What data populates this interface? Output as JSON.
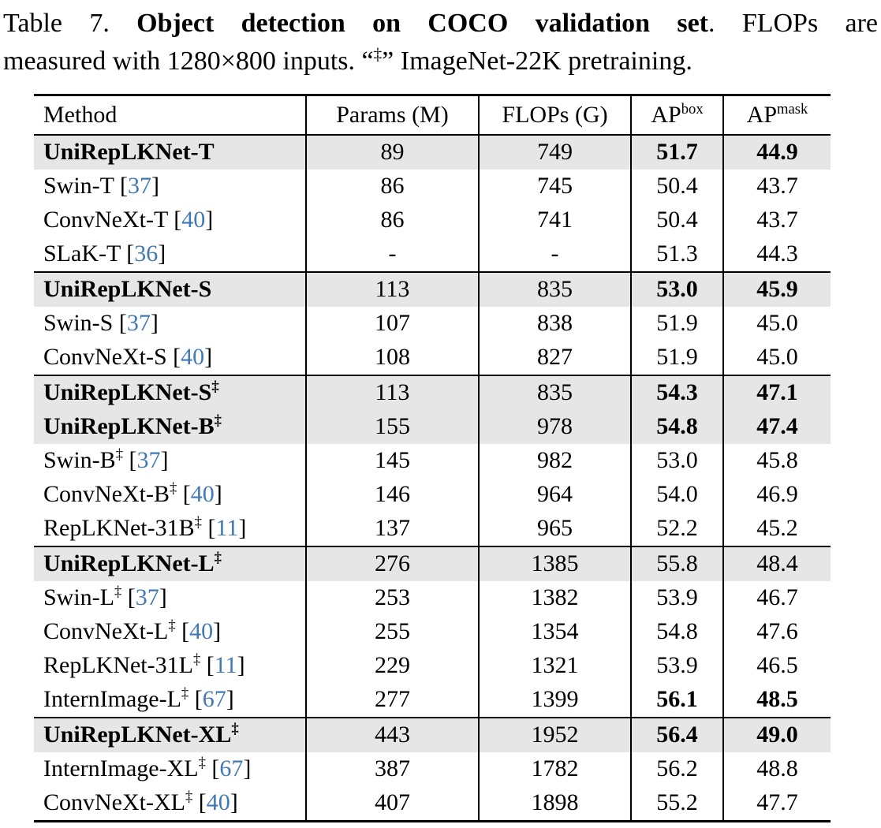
{
  "caption": {
    "label": "Table 7.",
    "title_bold": "Object detection on COCO validation set",
    "after_title": ". FLOPs are",
    "line2_pre": "measured with 1280×800 inputs. “",
    "dagger": "‡",
    "line2_post": "” ImageNet-22K pretraining."
  },
  "colors": {
    "highlight_bg": "#e6e6e6",
    "citation_blue": "#4179b5",
    "rule_black": "#000000"
  },
  "table": {
    "headers": {
      "method": "Method",
      "params": "Params (M)",
      "flops": "FLOPs (G)",
      "ap": "AP",
      "box_sup": "box",
      "mask_sup": "mask"
    },
    "rows": [
      {
        "method": "UniRepLKNet-T",
        "sup": "",
        "cite": "",
        "params": "89",
        "flops": "749",
        "ap_box": "51.7",
        "ap_mask": "44.9",
        "highlight": true,
        "bold_method": true,
        "bold_ap": true,
        "rule_above": false
      },
      {
        "method": "Swin-T",
        "sup": "",
        "cite": "37",
        "params": "86",
        "flops": "745",
        "ap_box": "50.4",
        "ap_mask": "43.7",
        "highlight": false,
        "bold_method": false,
        "bold_ap": false,
        "rule_above": false
      },
      {
        "method": "ConvNeXt-T",
        "sup": "",
        "cite": "40",
        "params": "86",
        "flops": "741",
        "ap_box": "50.4",
        "ap_mask": "43.7",
        "highlight": false,
        "bold_method": false,
        "bold_ap": false,
        "rule_above": false
      },
      {
        "method": "SLaK-T",
        "sup": "",
        "cite": "36",
        "params": "-",
        "flops": "-",
        "ap_box": "51.3",
        "ap_mask": "44.3",
        "highlight": false,
        "bold_method": false,
        "bold_ap": false,
        "rule_above": false
      },
      {
        "method": "UniRepLKNet-S",
        "sup": "",
        "cite": "",
        "params": "113",
        "flops": "835",
        "ap_box": "53.0",
        "ap_mask": "45.9",
        "highlight": true,
        "bold_method": true,
        "bold_ap": true,
        "rule_above": true
      },
      {
        "method": "Swin-S",
        "sup": "",
        "cite": "37",
        "params": "107",
        "flops": "838",
        "ap_box": "51.9",
        "ap_mask": "45.0",
        "highlight": false,
        "bold_method": false,
        "bold_ap": false,
        "rule_above": false
      },
      {
        "method": "ConvNeXt-S",
        "sup": "",
        "cite": "40",
        "params": "108",
        "flops": "827",
        "ap_box": "51.9",
        "ap_mask": "45.0",
        "highlight": false,
        "bold_method": false,
        "bold_ap": false,
        "rule_above": false
      },
      {
        "method": "UniRepLKNet-S",
        "sup": "‡",
        "cite": "",
        "params": "113",
        "flops": "835",
        "ap_box": "54.3",
        "ap_mask": "47.1",
        "highlight": true,
        "bold_method": true,
        "bold_ap": true,
        "rule_above": true
      },
      {
        "method": "UniRepLKNet-B",
        "sup": "‡",
        "cite": "",
        "params": "155",
        "flops": "978",
        "ap_box": "54.8",
        "ap_mask": "47.4",
        "highlight": true,
        "bold_method": true,
        "bold_ap": true,
        "rule_above": false
      },
      {
        "method": "Swin-B",
        "sup": "‡",
        "cite": "37",
        "params": "145",
        "flops": "982",
        "ap_box": "53.0",
        "ap_mask": "45.8",
        "highlight": false,
        "bold_method": false,
        "bold_ap": false,
        "rule_above": false
      },
      {
        "method": "ConvNeXt-B",
        "sup": "‡",
        "cite": "40",
        "params": "146",
        "flops": "964",
        "ap_box": "54.0",
        "ap_mask": "46.9",
        "highlight": false,
        "bold_method": false,
        "bold_ap": false,
        "rule_above": false
      },
      {
        "method": "RepLKNet-31B",
        "sup": "‡",
        "cite": "11",
        "params": "137",
        "flops": "965",
        "ap_box": "52.2",
        "ap_mask": "45.2",
        "highlight": false,
        "bold_method": false,
        "bold_ap": false,
        "rule_above": false
      },
      {
        "method": "UniRepLKNet-L",
        "sup": "‡",
        "cite": "",
        "params": "276",
        "flops": "1385",
        "ap_box": "55.8",
        "ap_mask": "48.4",
        "highlight": true,
        "bold_method": true,
        "bold_ap": false,
        "rule_above": true
      },
      {
        "method": "Swin-L",
        "sup": "‡",
        "cite": "37",
        "params": "253",
        "flops": "1382",
        "ap_box": "53.9",
        "ap_mask": "46.7",
        "highlight": false,
        "bold_method": false,
        "bold_ap": false,
        "rule_above": false
      },
      {
        "method": "ConvNeXt-L",
        "sup": "‡",
        "cite": "40",
        "params": "255",
        "flops": "1354",
        "ap_box": "54.8",
        "ap_mask": "47.6",
        "highlight": false,
        "bold_method": false,
        "bold_ap": false,
        "rule_above": false
      },
      {
        "method": "RepLKNet-31L",
        "sup": "‡",
        "cite": "11",
        "params": "229",
        "flops": "1321",
        "ap_box": "53.9",
        "ap_mask": "46.5",
        "highlight": false,
        "bold_method": false,
        "bold_ap": false,
        "rule_above": false
      },
      {
        "method": "InternImage-L",
        "sup": "‡",
        "cite": "67",
        "params": "277",
        "flops": "1399",
        "ap_box": "56.1",
        "ap_mask": "48.5",
        "highlight": false,
        "bold_method": false,
        "bold_ap": true,
        "rule_above": false
      },
      {
        "method": "UniRepLKNet-XL",
        "sup": "‡",
        "cite": "",
        "params": "443",
        "flops": "1952",
        "ap_box": "56.4",
        "ap_mask": "49.0",
        "highlight": true,
        "bold_method": true,
        "bold_ap": true,
        "rule_above": true
      },
      {
        "method": "InternImage-XL",
        "sup": "‡",
        "cite": "67",
        "params": "387",
        "flops": "1782",
        "ap_box": "56.2",
        "ap_mask": "48.8",
        "highlight": false,
        "bold_method": false,
        "bold_ap": false,
        "rule_above": false
      },
      {
        "method": "ConvNeXt-XL",
        "sup": "‡",
        "cite": "40",
        "params": "407",
        "flops": "1898",
        "ap_box": "55.2",
        "ap_mask": "47.7",
        "highlight": false,
        "bold_method": false,
        "bold_ap": false,
        "rule_above": false
      }
    ]
  }
}
